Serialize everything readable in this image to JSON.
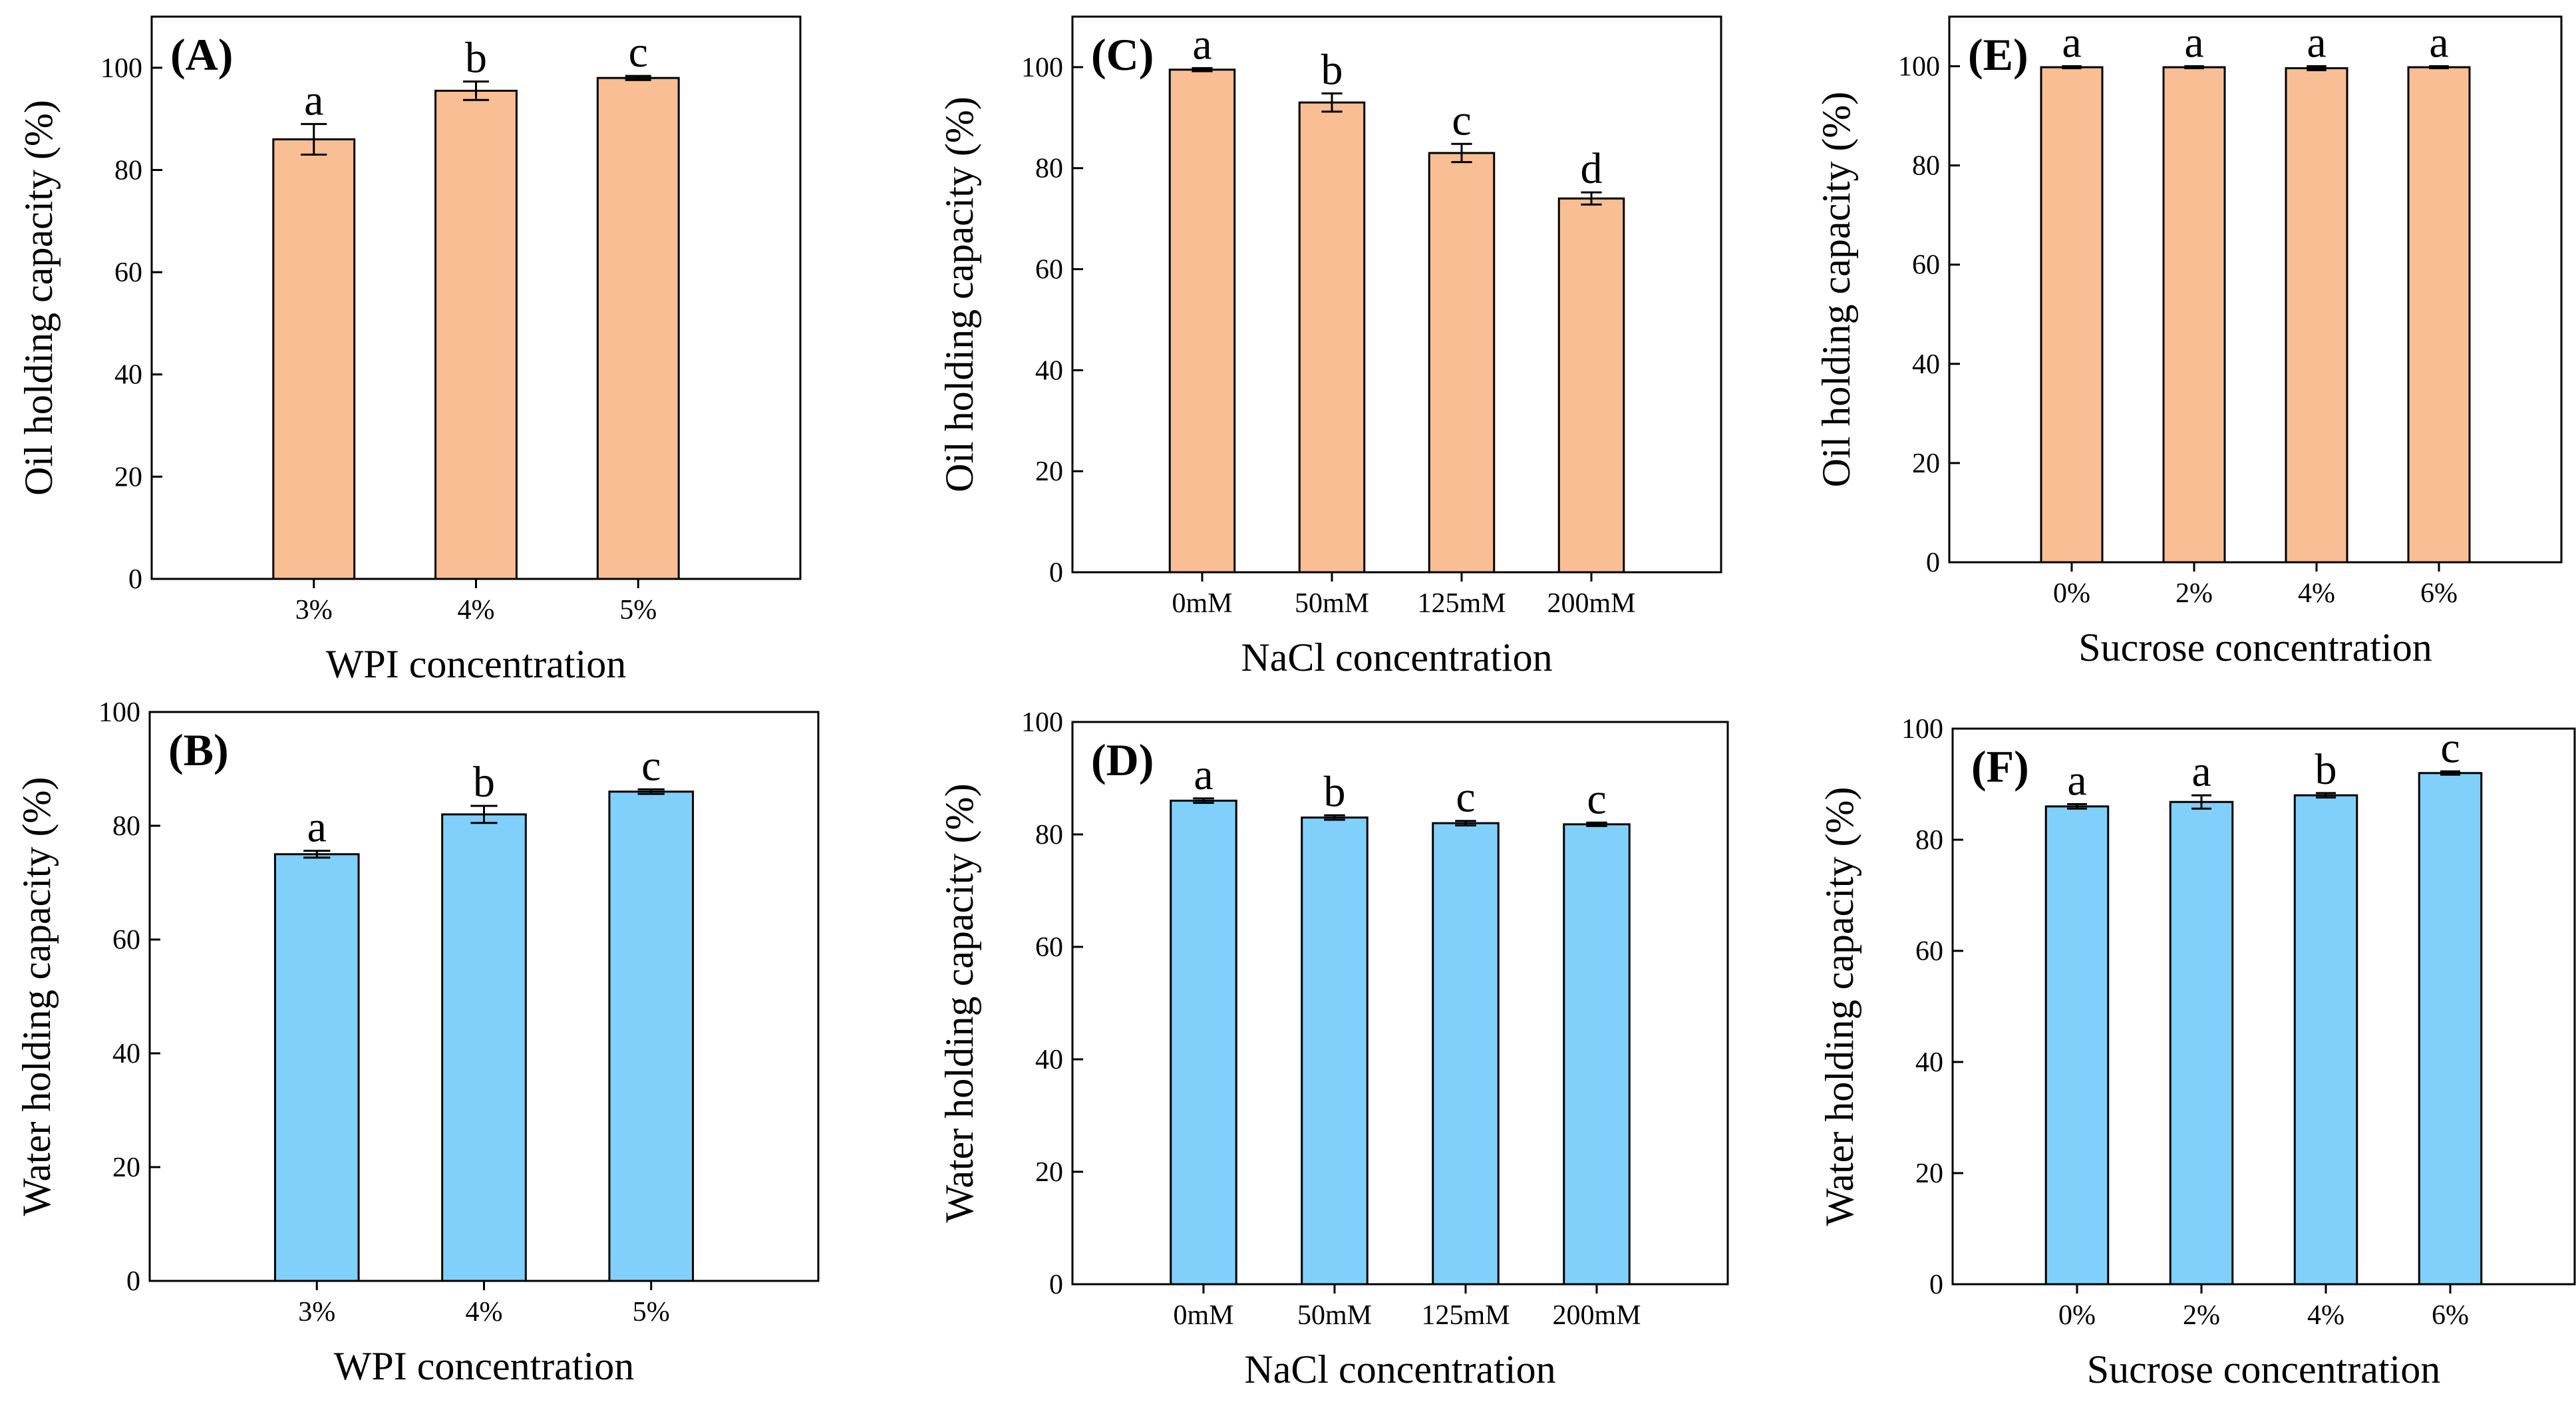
{
  "chart_data": [
    {
      "type": "bar",
      "panel_label": "(A)",
      "categories": [
        "3%",
        "4%",
        "5%"
      ],
      "values": [
        86,
        95.5,
        98
      ],
      "errors": [
        3,
        1.8,
        0.4
      ],
      "significance": [
        "a",
        "b",
        "c"
      ],
      "xlabel": "WPI concentration",
      "ylabel": "Oil holding capacity (%)",
      "ylim": [
        0,
        110
      ],
      "yticks": [
        0,
        20,
        40,
        60,
        80,
        100
      ],
      "bar_color": "#F9BE93",
      "grid": false
    },
    {
      "type": "bar",
      "panel_label": "(B)",
      "categories": [
        "3%",
        "4%",
        "5%"
      ],
      "values": [
        75,
        82,
        86
      ],
      "errors": [
        0.6,
        1.5,
        0.4
      ],
      "significance": [
        "a",
        "b",
        "c"
      ],
      "xlabel": "WPI concentration",
      "ylabel": "Water holding capacity (%)",
      "ylim": [
        0,
        100
      ],
      "yticks": [
        0,
        20,
        40,
        60,
        80,
        100
      ],
      "bar_color": "#80D0FB",
      "grid": false
    },
    {
      "type": "bar",
      "panel_label": "(C)",
      "categories": [
        "0mM",
        "50mM",
        "125mM",
        "200mM"
      ],
      "values": [
        99.5,
        93,
        83,
        74
      ],
      "errors": [
        0.3,
        1.8,
        1.8,
        1.2
      ],
      "significance": [
        "a",
        "b",
        "c",
        "d"
      ],
      "xlabel": "NaCl concentration",
      "ylabel": "Oil holding capacity (%)",
      "ylim": [
        0,
        110
      ],
      "yticks": [
        0,
        20,
        40,
        60,
        80,
        100
      ],
      "bar_color": "#F9BE93",
      "grid": false
    },
    {
      "type": "bar",
      "panel_label": "(D)",
      "categories": [
        "0mM",
        "50mM",
        "125mM",
        "200mM"
      ],
      "values": [
        86,
        83,
        82,
        81.8
      ],
      "errors": [
        0.4,
        0.4,
        0.4,
        0.3
      ],
      "significance": [
        "a",
        "b",
        "c",
        "c"
      ],
      "xlabel": "NaCl concentration",
      "ylabel": "Water holding capacity (%)",
      "ylim": [
        0,
        100
      ],
      "yticks": [
        0,
        20,
        40,
        60,
        80,
        100
      ],
      "bar_color": "#80D0FB",
      "grid": false
    },
    {
      "type": "bar",
      "panel_label": "(E)",
      "categories": [
        "0%",
        "2%",
        "4%",
        "6%"
      ],
      "values": [
        99.8,
        99.8,
        99.6,
        99.8
      ],
      "errors": [
        0.2,
        0.2,
        0.4,
        0.2
      ],
      "significance": [
        "a",
        "a",
        "a",
        "a"
      ],
      "xlabel": "Sucrose concentration",
      "ylabel": "Oil holding capacity (%)",
      "ylim": [
        0,
        110
      ],
      "yticks": [
        0,
        20,
        40,
        60,
        80,
        100
      ],
      "bar_color": "#F9BE93",
      "grid": false
    },
    {
      "type": "bar",
      "panel_label": "(F)",
      "categories": [
        "0%",
        "2%",
        "4%",
        "6%"
      ],
      "values": [
        86,
        86.8,
        88,
        92
      ],
      "errors": [
        0.4,
        1.2,
        0.4,
        0.3
      ],
      "significance": [
        "a",
        "a",
        "b",
        "c"
      ],
      "xlabel": "Sucrose concentration",
      "ylabel": "Water holding capacity (%)",
      "ylim": [
        0,
        100
      ],
      "yticks": [
        0,
        20,
        40,
        60,
        80,
        100
      ],
      "bar_color": "#80D0FB",
      "grid": false
    }
  ]
}
